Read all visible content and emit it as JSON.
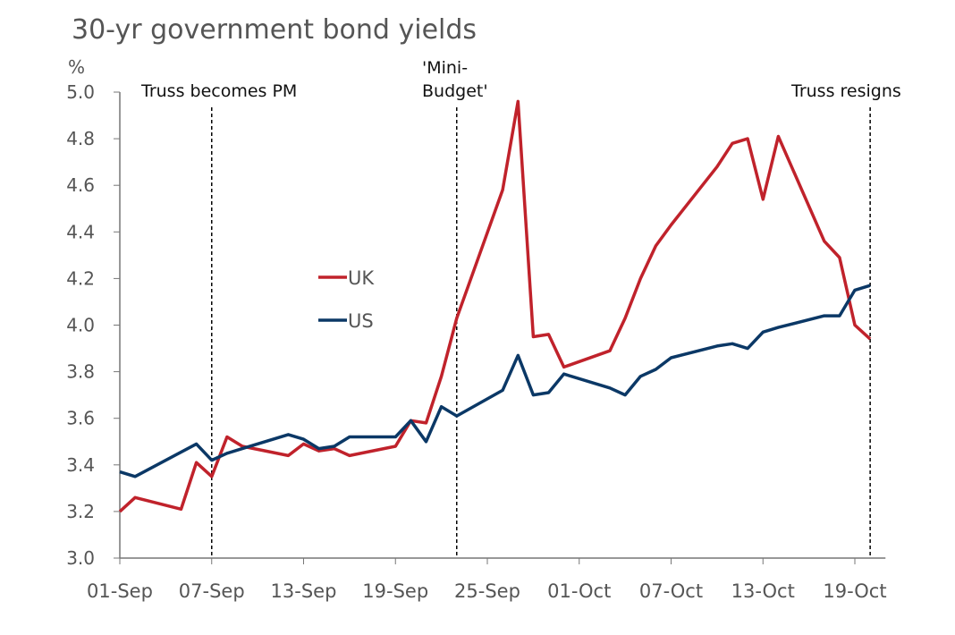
{
  "chart_data": {
    "type": "line",
    "title": "30-yr government bond yields",
    "ylabel": "%",
    "ylim": [
      3.0,
      5.0
    ],
    "yticks": [
      "3.0",
      "3.2",
      "3.4",
      "3.6",
      "3.8",
      "4.0",
      "4.2",
      "4.4",
      "4.6",
      "4.8",
      "5.0"
    ],
    "xlim": [
      "2022-09-01",
      "2022-10-21"
    ],
    "xticks": [
      {
        "date": "2022-09-01",
        "label": "01-Sep"
      },
      {
        "date": "2022-09-07",
        "label": "07-Sep"
      },
      {
        "date": "2022-09-13",
        "label": "13-Sep"
      },
      {
        "date": "2022-09-19",
        "label": "19-Sep"
      },
      {
        "date": "2022-09-25",
        "label": "25-Sep"
      },
      {
        "date": "2022-10-01",
        "label": "01-Oct"
      },
      {
        "date": "2022-10-07",
        "label": "07-Oct"
      },
      {
        "date": "2022-10-13",
        "label": "13-Oct"
      },
      {
        "date": "2022-10-19",
        "label": "19-Oct"
      }
    ],
    "legend": "inside-center-left",
    "grid": false,
    "annotations": [
      {
        "date": "2022-09-07",
        "lines": [
          "Truss becomes PM"
        ]
      },
      {
        "date": "2022-09-23",
        "lines": [
          "'Mini-",
          "Budget'"
        ]
      },
      {
        "date": "2022-10-20",
        "lines": [
          "Truss resigns"
        ]
      }
    ],
    "series": [
      {
        "name": "UK",
        "color": "#c0222b",
        "points": [
          [
            "2022-09-01",
            3.2
          ],
          [
            "2022-09-02",
            3.26
          ],
          [
            "2022-09-05",
            3.21
          ],
          [
            "2022-09-06",
            3.41
          ],
          [
            "2022-09-07",
            3.35
          ],
          [
            "2022-09-08",
            3.52
          ],
          [
            "2022-09-09",
            3.48
          ],
          [
            "2022-09-12",
            3.44
          ],
          [
            "2022-09-13",
            3.49
          ],
          [
            "2022-09-14",
            3.46
          ],
          [
            "2022-09-15",
            3.47
          ],
          [
            "2022-09-16",
            3.44
          ],
          [
            "2022-09-19",
            3.48
          ],
          [
            "2022-09-20",
            3.59
          ],
          [
            "2022-09-21",
            3.58
          ],
          [
            "2022-09-22",
            3.78
          ],
          [
            "2022-09-23",
            4.03
          ],
          [
            "2022-09-26",
            4.58
          ],
          [
            "2022-09-27",
            4.96
          ],
          [
            "2022-09-28",
            3.95
          ],
          [
            "2022-09-29",
            3.96
          ],
          [
            "2022-09-30",
            3.82
          ],
          [
            "2022-10-03",
            3.89
          ],
          [
            "2022-10-04",
            4.03
          ],
          [
            "2022-10-05",
            4.2
          ],
          [
            "2022-10-06",
            4.34
          ],
          [
            "2022-10-07",
            4.43
          ],
          [
            "2022-10-10",
            4.68
          ],
          [
            "2022-10-11",
            4.78
          ],
          [
            "2022-10-12",
            4.8
          ],
          [
            "2022-10-13",
            4.54
          ],
          [
            "2022-10-14",
            4.81
          ],
          [
            "2022-10-17",
            4.36
          ],
          [
            "2022-10-18",
            4.29
          ],
          [
            "2022-10-19",
            4.0
          ],
          [
            "2022-10-20",
            3.94
          ]
        ]
      },
      {
        "name": "US",
        "color": "#0b3866",
        "points": [
          [
            "2022-09-01",
            3.37
          ],
          [
            "2022-09-02",
            3.35
          ],
          [
            "2022-09-06",
            3.49
          ],
          [
            "2022-09-07",
            3.42
          ],
          [
            "2022-09-08",
            3.45
          ],
          [
            "2022-09-09",
            3.47
          ],
          [
            "2022-09-12",
            3.53
          ],
          [
            "2022-09-13",
            3.51
          ],
          [
            "2022-09-14",
            3.47
          ],
          [
            "2022-09-15",
            3.48
          ],
          [
            "2022-09-16",
            3.52
          ],
          [
            "2022-09-19",
            3.52
          ],
          [
            "2022-09-20",
            3.59
          ],
          [
            "2022-09-21",
            3.5
          ],
          [
            "2022-09-22",
            3.65
          ],
          [
            "2022-09-23",
            3.61
          ],
          [
            "2022-09-26",
            3.72
          ],
          [
            "2022-09-27",
            3.87
          ],
          [
            "2022-09-28",
            3.7
          ],
          [
            "2022-09-29",
            3.71
          ],
          [
            "2022-09-30",
            3.79
          ],
          [
            "2022-10-03",
            3.73
          ],
          [
            "2022-10-04",
            3.7
          ],
          [
            "2022-10-05",
            3.78
          ],
          [
            "2022-10-06",
            3.81
          ],
          [
            "2022-10-07",
            3.86
          ],
          [
            "2022-10-10",
            3.91
          ],
          [
            "2022-10-11",
            3.92
          ],
          [
            "2022-10-12",
            3.9
          ],
          [
            "2022-10-13",
            3.97
          ],
          [
            "2022-10-14",
            3.99
          ],
          [
            "2022-10-17",
            4.04
          ],
          [
            "2022-10-18",
            4.04
          ],
          [
            "2022-10-19",
            4.15
          ],
          [
            "2022-10-20",
            4.17
          ]
        ]
      }
    ]
  }
}
